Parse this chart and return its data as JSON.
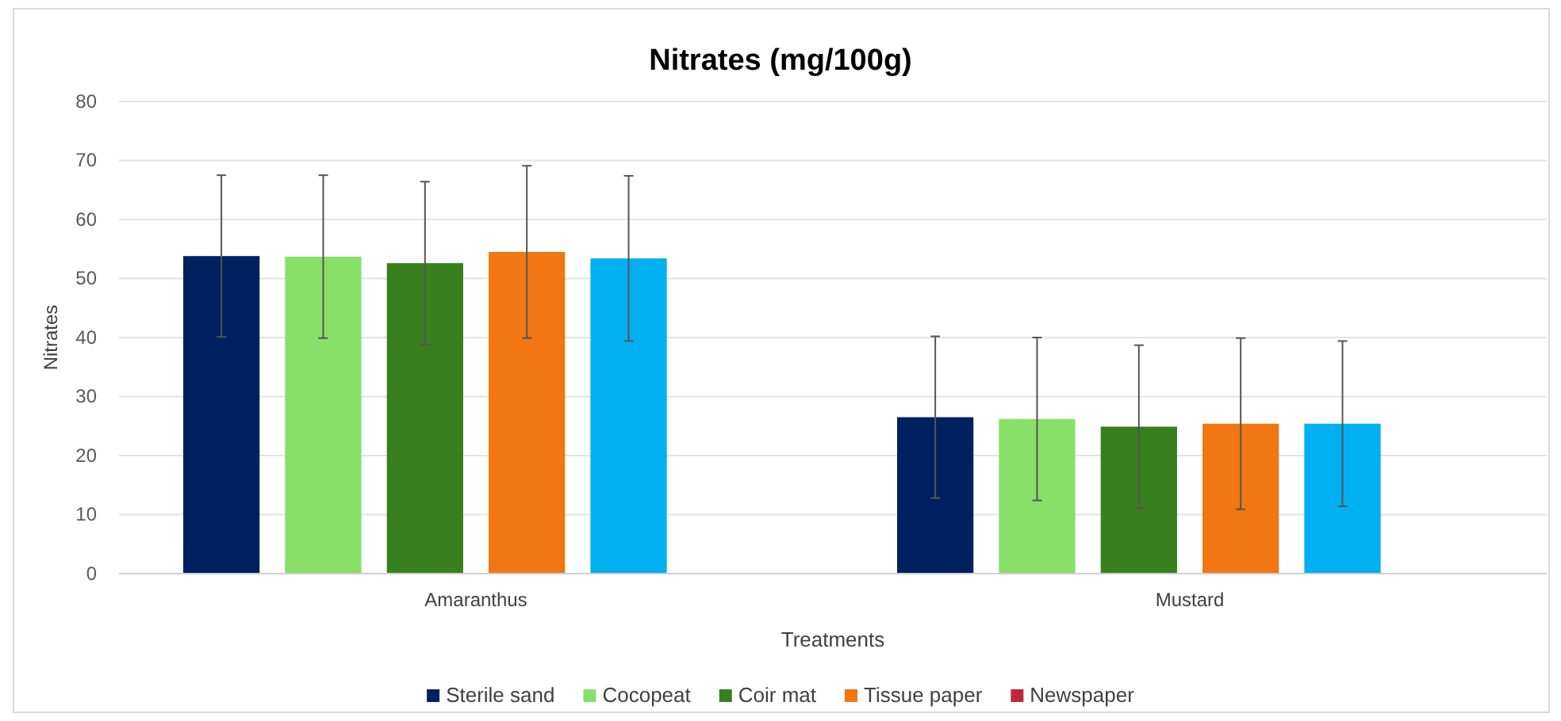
{
  "chart_data": {
    "type": "bar",
    "title": "Nitrates (mg/100g)",
    "xlabel": "Treatments",
    "ylabel": "Nitrates",
    "categories": [
      "Amaranthus",
      "Mustard"
    ],
    "series": [
      {
        "name": "Sterile sand",
        "color": "#002060",
        "values": [
          53.8,
          26.5
        ],
        "errors": [
          13.7,
          13.7
        ]
      },
      {
        "name": "Cocopeat",
        "color": "#88e068",
        "values": [
          53.7,
          26.2
        ],
        "errors": [
          13.8,
          13.8
        ]
      },
      {
        "name": "Coir mat",
        "color": "#38801e",
        "values": [
          52.6,
          24.9
        ],
        "errors": [
          13.8,
          13.8
        ]
      },
      {
        "name": "Tissue paper",
        "color": "#f27611",
        "values": [
          54.5,
          25.4
        ],
        "errors": [
          14.6,
          14.5
        ]
      },
      {
        "name": null,
        "color": "#00b0f0",
        "values": [
          53.4,
          25.4
        ],
        "errors": [
          14.0,
          14.0
        ]
      },
      {
        "name": "Newspaper",
        "color": "#c0283a",
        "values": [
          null,
          null
        ]
      }
    ],
    "ylim": [
      0,
      80
    ],
    "yticks": [
      0,
      10,
      20,
      30,
      40,
      50,
      60,
      70,
      80
    ],
    "grid": "y",
    "legend": "bottom"
  }
}
